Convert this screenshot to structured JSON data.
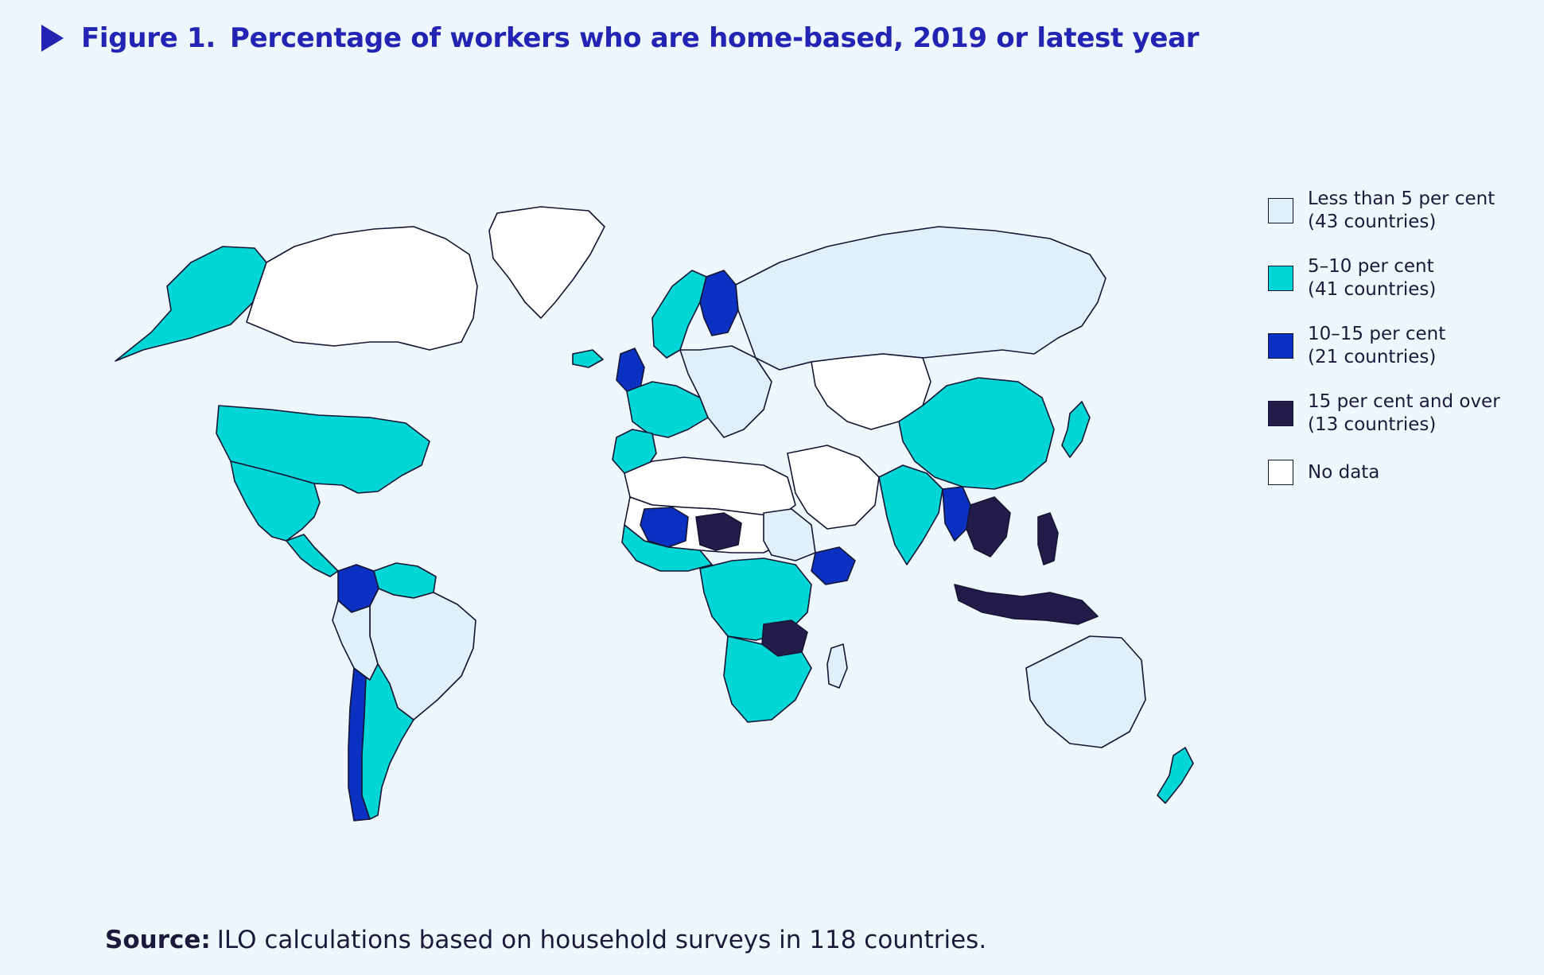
{
  "header": {
    "figure_label": "Figure 1.",
    "title": "Percentage of workers who are home-based, 2019 or latest year"
  },
  "legend": {
    "items": [
      {
        "label": "Less than 5 per cent",
        "count": "(43 countries)",
        "color": "#dff0fb"
      },
      {
        "label": "5–10 per cent",
        "count": "(41 countries)",
        "color": "#00d6d6"
      },
      {
        "label": "10–15 per cent",
        "count": "(21 countries)",
        "color": "#0a31c2"
      },
      {
        "label": "15 per cent and over",
        "count": "(13 countries)",
        "color": "#231c4a"
      },
      {
        "label": "No data",
        "count": "",
        "color": "#ffffff"
      }
    ]
  },
  "source": {
    "label": "Source:",
    "text": "ILO calculations based on household surveys in 118 countries."
  },
  "colors": {
    "background": "#eef7fd",
    "title": "#2324b4",
    "borders": "#141433"
  },
  "map": {
    "regions": [
      {
        "name": "alaska",
        "category": 1
      },
      {
        "name": "canada",
        "category": 4
      },
      {
        "name": "greenland",
        "category": 4
      },
      {
        "name": "iceland",
        "category": 1
      },
      {
        "name": "united-states",
        "category": 1
      },
      {
        "name": "mexico",
        "category": 1
      },
      {
        "name": "central-america",
        "category": 1
      },
      {
        "name": "colombia",
        "category": 2
      },
      {
        "name": "venezuela-guianas",
        "category": 1
      },
      {
        "name": "brazil",
        "category": 0
      },
      {
        "name": "peru-bolivia",
        "category": 0
      },
      {
        "name": "chile",
        "category": 2
      },
      {
        "name": "argentina",
        "category": 1
      },
      {
        "name": "uk-ireland",
        "category": 2
      },
      {
        "name": "scandinavia",
        "category": 1
      },
      {
        "name": "finland",
        "category": 2
      },
      {
        "name": "western-europe",
        "category": 1
      },
      {
        "name": "iberia",
        "category": 1
      },
      {
        "name": "europe-east",
        "category": 0
      },
      {
        "name": "russia",
        "category": 0
      },
      {
        "name": "north-africa",
        "category": 4
      },
      {
        "name": "sahel-west-africa",
        "category": 4
      },
      {
        "name": "mali",
        "category": 2
      },
      {
        "name": "niger",
        "category": 3
      },
      {
        "name": "west-africa-coast",
        "category": 1
      },
      {
        "name": "sudan",
        "category": 0
      },
      {
        "name": "ethiopia",
        "category": 2
      },
      {
        "name": "central-africa",
        "category": 1
      },
      {
        "name": "zambia",
        "category": 3
      },
      {
        "name": "southern-africa",
        "category": 1
      },
      {
        "name": "madagascar",
        "category": 0
      },
      {
        "name": "middle-east",
        "category": 4
      },
      {
        "name": "central-asia",
        "category": 4
      },
      {
        "name": "china",
        "category": 1
      },
      {
        "name": "india",
        "category": 1
      },
      {
        "name": "myanmar",
        "category": 2
      },
      {
        "name": "indochina",
        "category": 3
      },
      {
        "name": "japan",
        "category": 1
      },
      {
        "name": "indonesia",
        "category": 3
      },
      {
        "name": "philippines",
        "category": 3
      },
      {
        "name": "australia",
        "category": 0
      },
      {
        "name": "new-zealand",
        "category": 1
      }
    ]
  }
}
